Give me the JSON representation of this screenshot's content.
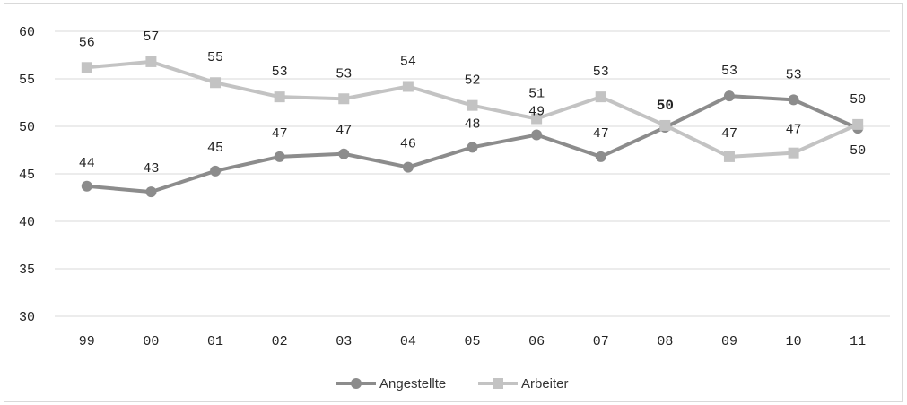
{
  "chart_data": {
    "type": "line",
    "title": "",
    "xlabel": "",
    "ylabel": "",
    "categories": [
      "99",
      "00",
      "01",
      "02",
      "03",
      "04",
      "05",
      "06",
      "07",
      "08",
      "09",
      "10",
      "11"
    ],
    "ylim": [
      30,
      60
    ],
    "yticks": [
      30,
      35,
      40,
      45,
      50,
      55,
      60
    ],
    "grid": true,
    "legend": "bottom",
    "series": [
      {
        "name": "Angestellte",
        "color": "#8c8c8c",
        "marker": "circle",
        "values": [
          43.7,
          43.1,
          45.3,
          46.8,
          47.1,
          45.7,
          47.8,
          49.1,
          46.8,
          49.9,
          53.2,
          52.8,
          49.8
        ],
        "labels": [
          "44",
          "43",
          "45",
          "47",
          "47",
          "46",
          "48",
          "49",
          "47",
          "50",
          "53",
          "53",
          "50"
        ]
      },
      {
        "name": "Arbeiter",
        "color": "#c3c3c3",
        "marker": "square",
        "values": [
          56.2,
          56.8,
          54.6,
          53.1,
          52.9,
          54.2,
          52.2,
          50.8,
          53.1,
          50.1,
          46.8,
          47.2,
          50.2
        ],
        "labels": [
          "56",
          "57",
          "55",
          "53",
          "53",
          "54",
          "52",
          "51",
          "53",
          "50",
          "47",
          "47",
          "50"
        ]
      }
    ]
  }
}
